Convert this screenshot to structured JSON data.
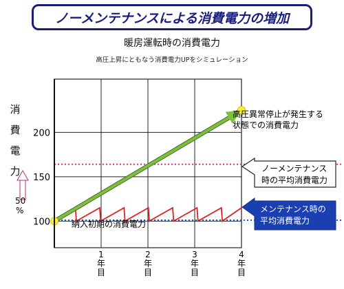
{
  "banner": "ノーメンテナンスによる消費電力の増加",
  "chart_data": {
    "type": "line",
    "title": "暖房運転時の消費電力",
    "subtitle": "高圧上昇にともなう消費電力UPをシミュレーション",
    "ylabel": [
      "消",
      "費",
      "電",
      "力"
    ],
    "up_label": [
      "50",
      "%"
    ],
    "xlim": [
      0,
      4
    ],
    "ylim": [
      70,
      260
    ],
    "yticks": [
      100,
      150,
      200
    ],
    "xticks": [
      {
        "x": 1,
        "label": [
          "1",
          "年",
          "目"
        ]
      },
      {
        "x": 2,
        "label": [
          "2",
          "年",
          "目"
        ]
      },
      {
        "x": 3,
        "label": [
          "3",
          "年",
          "目"
        ]
      },
      {
        "x": 4,
        "label": [
          "4",
          "年",
          "目"
        ]
      }
    ],
    "series": [
      {
        "kind": "trend",
        "color": "#7fbf3f",
        "points": [
          [
            0,
            100
          ],
          [
            4,
            225
          ]
        ]
      },
      {
        "kind": "sawtooth",
        "color": "#e02020",
        "points": [
          [
            0,
            100
          ],
          [
            0.45,
            115
          ],
          [
            0.47,
            100
          ],
          [
            0.97,
            115
          ],
          [
            0.99,
            100
          ],
          [
            1.49,
            115
          ],
          [
            1.51,
            100
          ],
          [
            2.01,
            115
          ],
          [
            2.03,
            100
          ],
          [
            2.53,
            115
          ],
          [
            2.55,
            100
          ],
          [
            3.05,
            115
          ],
          [
            3.07,
            100
          ],
          [
            3.57,
            115
          ],
          [
            3.59,
            100
          ],
          [
            4.0,
            115
          ]
        ]
      }
    ],
    "reference_lines": [
      {
        "value": 164,
        "color": "#e0308a"
      },
      {
        "value": 101,
        "color": "#1a56c8"
      }
    ],
    "annotations": {
      "high_pressure": [
        "高圧異常停止が発生する",
        "状態での消費電力"
      ],
      "initial": "納入初期の消費電力",
      "no_maintenance": [
        "ノーメンテナンス",
        "時の平均消費電力"
      ],
      "maintenance": [
        "メンテナンス時の",
        "平均消費電力"
      ]
    }
  }
}
